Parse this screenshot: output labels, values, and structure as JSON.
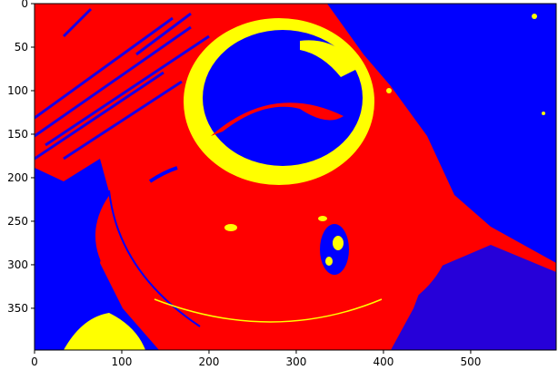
{
  "figure": {
    "colors": {
      "background": "#ff0000",
      "blue": "#0000ff",
      "yellow": "#ffff00",
      "axis": "#000000"
    }
  },
  "axes": {
    "x_ticks": [
      {
        "value": 0,
        "label": "0"
      },
      {
        "value": 100,
        "label": "100"
      },
      {
        "value": 200,
        "label": "200"
      },
      {
        "value": 300,
        "label": "300"
      },
      {
        "value": 400,
        "label": "400"
      },
      {
        "value": 500,
        "label": "500"
      }
    ],
    "y_ticks": [
      {
        "value": 0,
        "label": "0"
      },
      {
        "value": 50,
        "label": "50"
      },
      {
        "value": 100,
        "label": "100"
      },
      {
        "value": 150,
        "label": "150"
      },
      {
        "value": 200,
        "label": "200"
      },
      {
        "value": 250,
        "label": "250"
      },
      {
        "value": 300,
        "label": "300"
      },
      {
        "value": 350,
        "label": "350"
      }
    ],
    "x_range": [
      0,
      600
    ],
    "y_range": [
      0,
      400
    ]
  }
}
